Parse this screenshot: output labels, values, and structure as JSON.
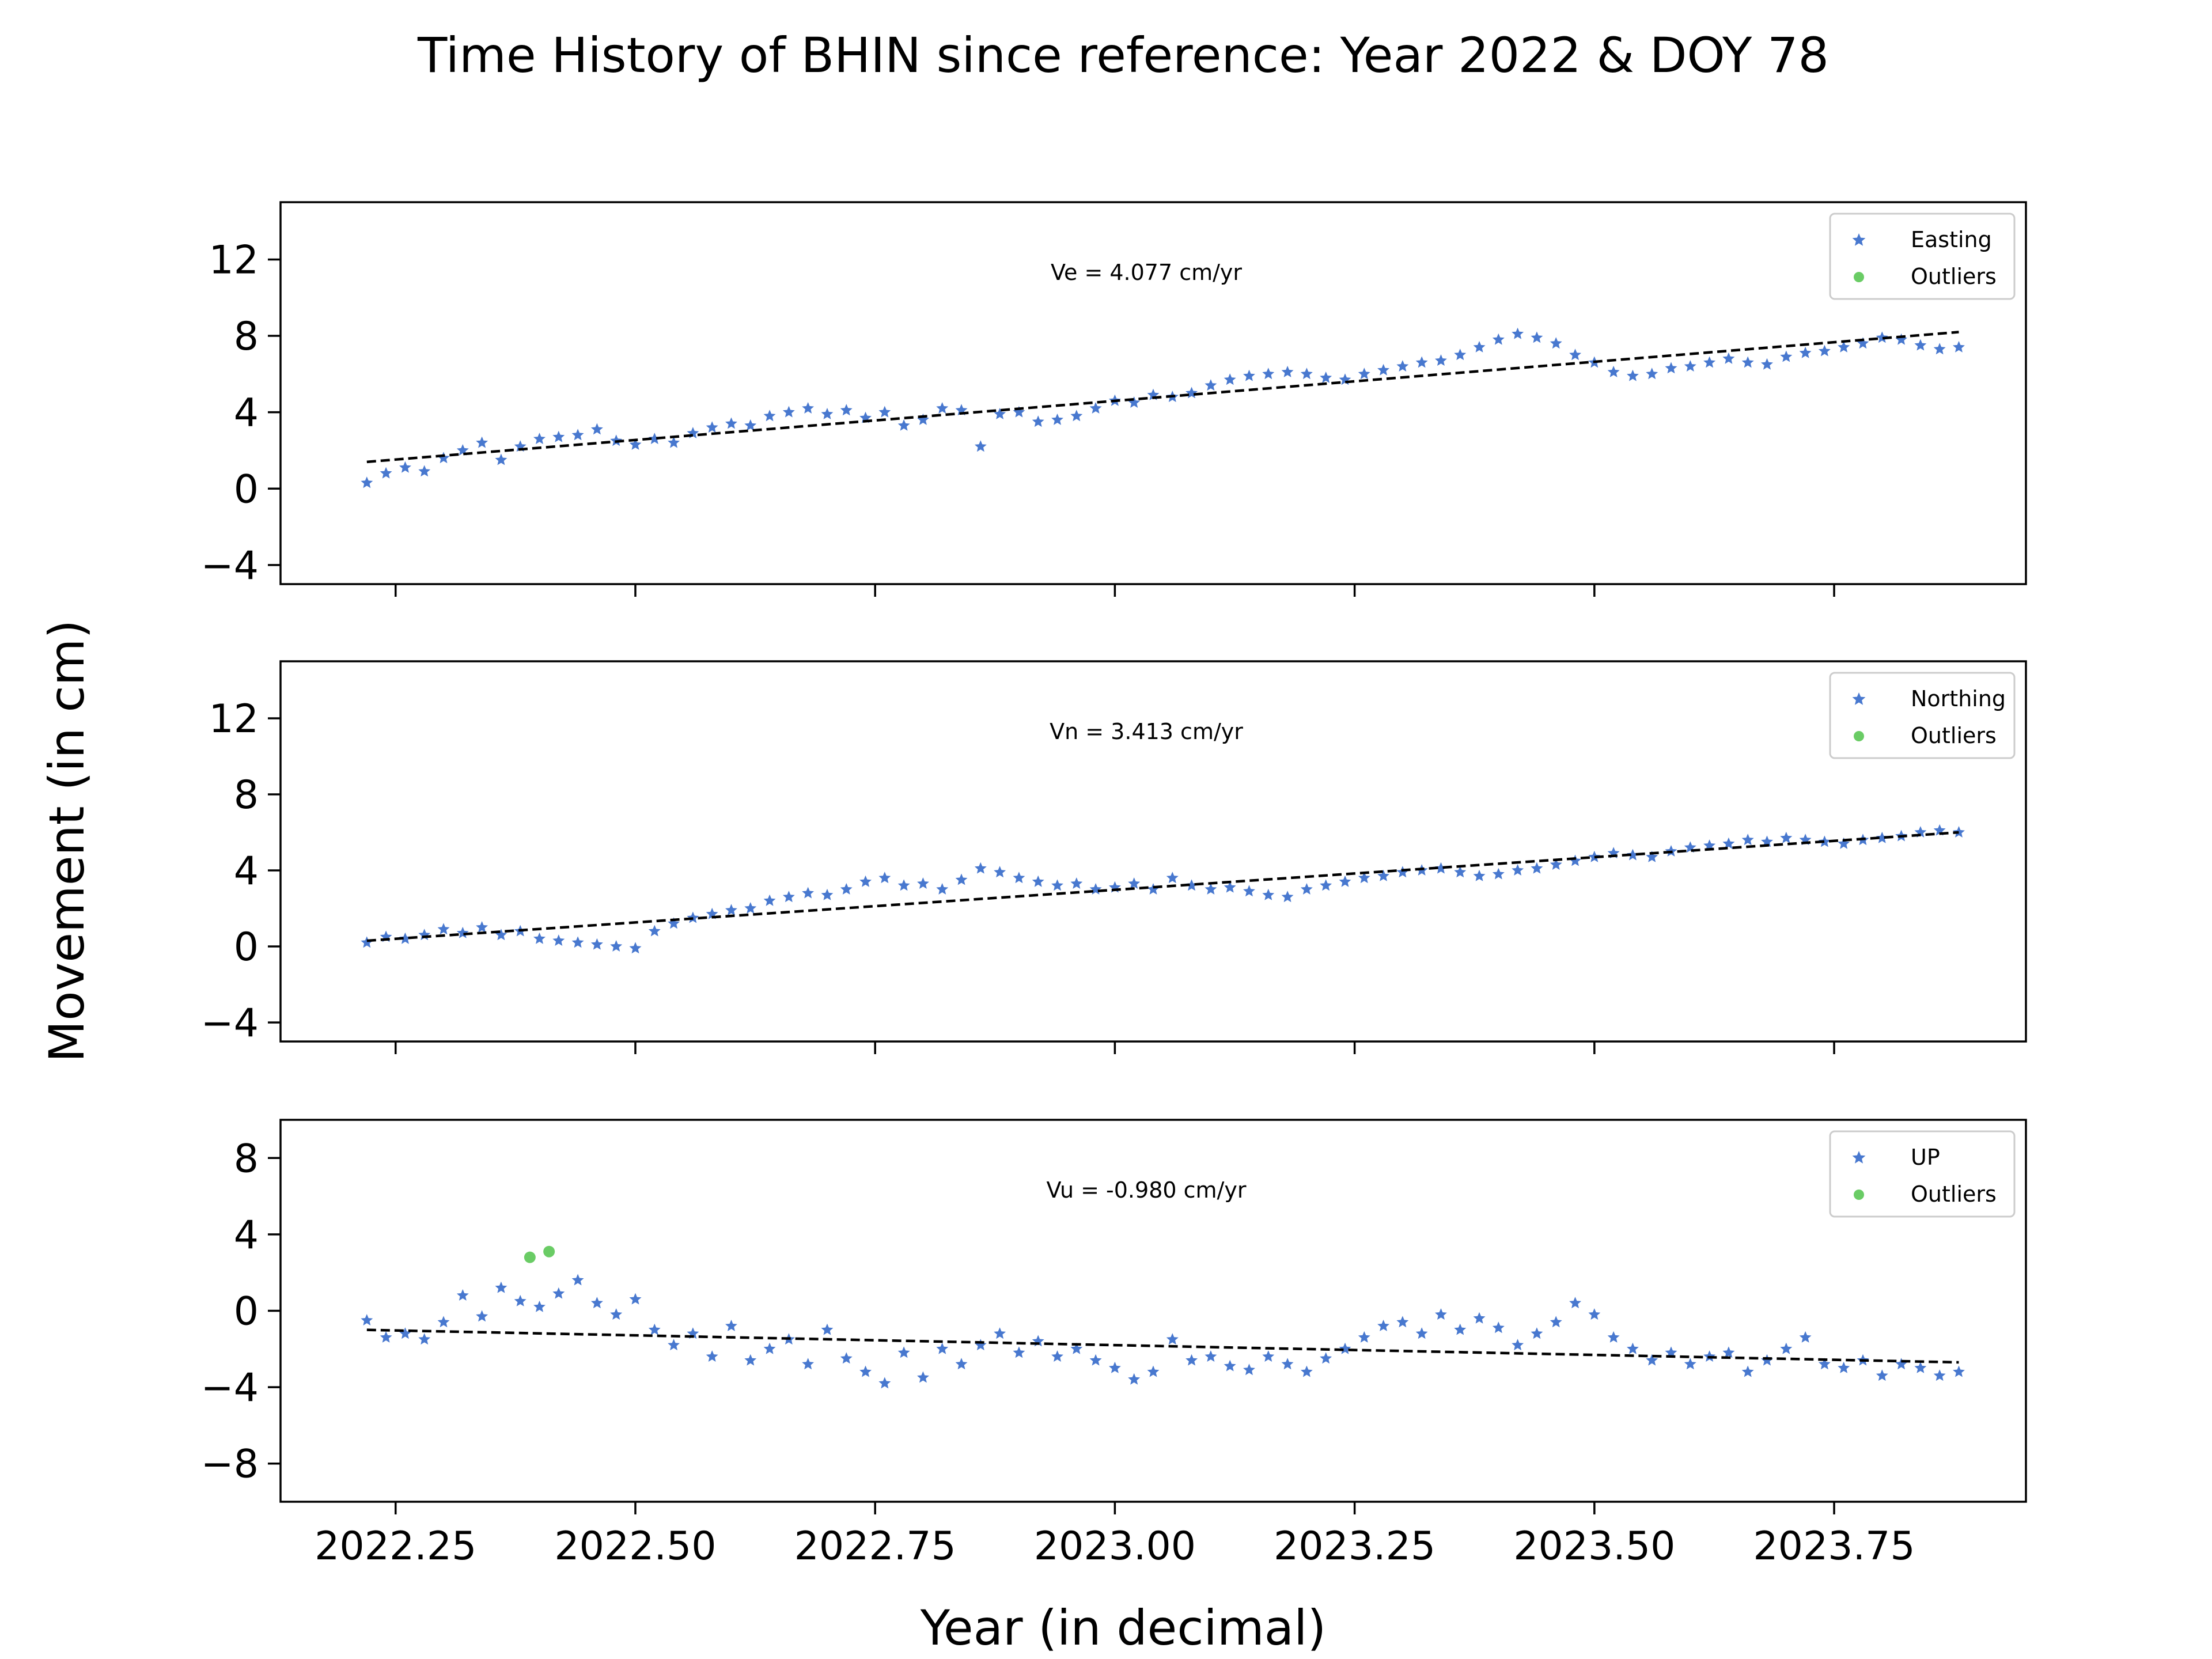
{
  "figure": {
    "title": "Time History of BHIN since reference: Year 2022 & DOY 78",
    "xlabel": "Year (in decimal)",
    "ylabel": "Movement (in cm)",
    "x_tick_labels": [
      "2022.25",
      "2022.50",
      "2022.75",
      "2023.00",
      "2023.25",
      "2023.50",
      "2023.75"
    ],
    "colors": {
      "series": "#4878cf",
      "outliers": "#6acc65",
      "trend": "#000000"
    }
  },
  "chart_data": [
    {
      "type": "scatter",
      "panel": "easting",
      "ylim": [
        -5,
        15
      ],
      "xlim": [
        2022.13,
        2023.95
      ],
      "yticks": [
        -4,
        0,
        4,
        8,
        12
      ],
      "xticks": [
        2022.25,
        2022.5,
        2022.75,
        2023.0,
        2023.25,
        2023.5,
        2023.75
      ],
      "annotation": "Ve =  4.077 cm/yr",
      "legend": {
        "position": "top-right",
        "entries": [
          "Easting",
          "Outliers"
        ]
      },
      "trend": {
        "x": [
          2022.22,
          2023.88
        ],
        "y": [
          1.4,
          8.2
        ]
      },
      "series": [
        {
          "name": "Easting",
          "marker": "star",
          "x": [
            2022.22,
            2022.24,
            2022.26,
            2022.28,
            2022.3,
            2022.32,
            2022.34,
            2022.36,
            2022.38,
            2022.4,
            2022.42,
            2022.44,
            2022.46,
            2022.48,
            2022.5,
            2022.52,
            2022.54,
            2022.56,
            2022.58,
            2022.6,
            2022.62,
            2022.64,
            2022.66,
            2022.68,
            2022.7,
            2022.72,
            2022.74,
            2022.76,
            2022.78,
            2022.8,
            2022.82,
            2022.84,
            2022.86,
            2022.88,
            2022.9,
            2022.92,
            2022.94,
            2022.96,
            2022.98,
            2023.0,
            2023.02,
            2023.04,
            2023.06,
            2023.08,
            2023.1,
            2023.12,
            2023.14,
            2023.16,
            2023.18,
            2023.2,
            2023.22,
            2023.24,
            2023.26,
            2023.28,
            2023.3,
            2023.32,
            2023.34,
            2023.36,
            2023.38,
            2023.4,
            2023.42,
            2023.44,
            2023.46,
            2023.48,
            2023.5,
            2023.52,
            2023.54,
            2023.56,
            2023.58,
            2023.6,
            2023.62,
            2023.64,
            2023.66,
            2023.68,
            2023.7,
            2023.72,
            2023.74,
            2023.76,
            2023.78,
            2023.8,
            2023.82,
            2023.84,
            2023.86,
            2023.88
          ],
          "y": [
            0.3,
            0.8,
            1.1,
            0.9,
            1.6,
            2.0,
            2.4,
            1.5,
            2.2,
            2.6,
            2.7,
            2.8,
            3.1,
            2.5,
            2.3,
            2.6,
            2.4,
            2.9,
            3.2,
            3.4,
            3.3,
            3.8,
            4.0,
            4.2,
            3.9,
            4.1,
            3.7,
            4.0,
            3.3,
            3.6,
            4.2,
            4.1,
            2.2,
            3.9,
            4.0,
            3.5,
            3.6,
            3.8,
            4.2,
            4.6,
            4.5,
            4.9,
            4.8,
            5.0,
            5.4,
            5.7,
            5.9,
            6.0,
            6.1,
            6.0,
            5.8,
            5.7,
            6.0,
            6.2,
            6.4,
            6.6,
            6.7,
            7.0,
            7.4,
            7.8,
            8.1,
            7.9,
            7.6,
            7.0,
            6.6,
            6.1,
            5.9,
            6.0,
            6.3,
            6.4,
            6.6,
            6.8,
            6.6,
            6.5,
            6.9,
            7.1,
            7.2,
            7.4,
            7.6,
            7.9,
            7.8,
            7.5,
            7.3,
            7.4
          ]
        },
        {
          "name": "Outliers",
          "marker": "dot",
          "x": [],
          "y": []
        }
      ]
    },
    {
      "type": "scatter",
      "panel": "northing",
      "ylim": [
        -5,
        15
      ],
      "xlim": [
        2022.13,
        2023.95
      ],
      "yticks": [
        -4,
        0,
        4,
        8,
        12
      ],
      "xticks": [
        2022.25,
        2022.5,
        2022.75,
        2023.0,
        2023.25,
        2023.5,
        2023.75
      ],
      "annotation": "Vn =  3.413 cm/yr",
      "legend": {
        "position": "top-right",
        "entries": [
          "Northing",
          "Outliers"
        ]
      },
      "trend": {
        "x": [
          2022.22,
          2023.88
        ],
        "y": [
          0.3,
          6.0
        ]
      },
      "series": [
        {
          "name": "Northing",
          "marker": "star",
          "x": [
            2022.22,
            2022.24,
            2022.26,
            2022.28,
            2022.3,
            2022.32,
            2022.34,
            2022.36,
            2022.38,
            2022.4,
            2022.42,
            2022.44,
            2022.46,
            2022.48,
            2022.5,
            2022.52,
            2022.54,
            2022.56,
            2022.58,
            2022.6,
            2022.62,
            2022.64,
            2022.66,
            2022.68,
            2022.7,
            2022.72,
            2022.74,
            2022.76,
            2022.78,
            2022.8,
            2022.82,
            2022.84,
            2022.86,
            2022.88,
            2022.9,
            2022.92,
            2022.94,
            2022.96,
            2022.98,
            2023.0,
            2023.02,
            2023.04,
            2023.06,
            2023.08,
            2023.1,
            2023.12,
            2023.14,
            2023.16,
            2023.18,
            2023.2,
            2023.22,
            2023.24,
            2023.26,
            2023.28,
            2023.3,
            2023.32,
            2023.34,
            2023.36,
            2023.38,
            2023.4,
            2023.42,
            2023.44,
            2023.46,
            2023.48,
            2023.5,
            2023.52,
            2023.54,
            2023.56,
            2023.58,
            2023.6,
            2023.62,
            2023.64,
            2023.66,
            2023.68,
            2023.7,
            2023.72,
            2023.74,
            2023.76,
            2023.78,
            2023.8,
            2023.82,
            2023.84,
            2023.86,
            2023.88
          ],
          "y": [
            0.2,
            0.5,
            0.4,
            0.6,
            0.9,
            0.7,
            1.0,
            0.6,
            0.8,
            0.4,
            0.3,
            0.2,
            0.1,
            0.0,
            -0.1,
            0.8,
            1.2,
            1.5,
            1.7,
            1.9,
            2.0,
            2.4,
            2.6,
            2.8,
            2.7,
            3.0,
            3.4,
            3.6,
            3.2,
            3.3,
            3.0,
            3.5,
            4.1,
            3.9,
            3.6,
            3.4,
            3.2,
            3.3,
            3.0,
            3.1,
            3.3,
            3.0,
            3.6,
            3.2,
            3.0,
            3.1,
            2.9,
            2.7,
            2.6,
            3.0,
            3.2,
            3.4,
            3.6,
            3.7,
            3.9,
            4.0,
            4.1,
            3.9,
            3.7,
            3.8,
            4.0,
            4.1,
            4.3,
            4.5,
            4.7,
            4.9,
            4.8,
            4.7,
            5.0,
            5.2,
            5.3,
            5.4,
            5.6,
            5.5,
            5.7,
            5.6,
            5.5,
            5.4,
            5.6,
            5.7,
            5.8,
            6.0,
            6.1,
            6.0
          ]
        },
        {
          "name": "Outliers",
          "marker": "dot",
          "x": [],
          "y": []
        }
      ]
    },
    {
      "type": "scatter",
      "panel": "up",
      "ylim": [
        -10,
        10
      ],
      "xlim": [
        2022.13,
        2023.95
      ],
      "yticks": [
        -8,
        -4,
        0,
        4,
        8
      ],
      "xticks": [
        2022.25,
        2022.5,
        2022.75,
        2023.0,
        2023.25,
        2023.5,
        2023.75
      ],
      "annotation": "Vu = -0.980 cm/yr",
      "legend": {
        "position": "top-right",
        "entries": [
          "UP",
          "Outliers"
        ]
      },
      "trend": {
        "x": [
          2022.22,
          2023.88
        ],
        "y": [
          -1.0,
          -2.7
        ]
      },
      "series": [
        {
          "name": "UP",
          "marker": "star",
          "x": [
            2022.22,
            2022.24,
            2022.26,
            2022.28,
            2022.3,
            2022.32,
            2022.34,
            2022.36,
            2022.38,
            2022.4,
            2022.42,
            2022.44,
            2022.46,
            2022.48,
            2022.5,
            2022.52,
            2022.54,
            2022.56,
            2022.58,
            2022.6,
            2022.62,
            2022.64,
            2022.66,
            2022.68,
            2022.7,
            2022.72,
            2022.74,
            2022.76,
            2022.78,
            2022.8,
            2022.82,
            2022.84,
            2022.86,
            2022.88,
            2022.9,
            2022.92,
            2022.94,
            2022.96,
            2022.98,
            2023.0,
            2023.02,
            2023.04,
            2023.06,
            2023.08,
            2023.1,
            2023.12,
            2023.14,
            2023.16,
            2023.18,
            2023.2,
            2023.22,
            2023.24,
            2023.26,
            2023.28,
            2023.3,
            2023.32,
            2023.34,
            2023.36,
            2023.38,
            2023.4,
            2023.42,
            2023.44,
            2023.46,
            2023.48,
            2023.5,
            2023.52,
            2023.54,
            2023.56,
            2023.58,
            2023.6,
            2023.62,
            2023.64,
            2023.66,
            2023.68,
            2023.7,
            2023.72,
            2023.74,
            2023.76,
            2023.78,
            2023.8,
            2023.82,
            2023.84,
            2023.86,
            2023.88
          ],
          "y": [
            -0.5,
            -1.4,
            -1.2,
            -1.5,
            -0.6,
            0.8,
            -0.3,
            1.2,
            0.5,
            0.2,
            0.9,
            1.6,
            0.4,
            -0.2,
            0.6,
            -1.0,
            -1.8,
            -1.2,
            -2.4,
            -0.8,
            -2.6,
            -2.0,
            -1.5,
            -2.8,
            -1.0,
            -2.5,
            -3.2,
            -3.8,
            -2.2,
            -3.5,
            -2.0,
            -2.8,
            -1.8,
            -1.2,
            -2.2,
            -1.6,
            -2.4,
            -2.0,
            -2.6,
            -3.0,
            -3.6,
            -3.2,
            -1.5,
            -2.6,
            -2.4,
            -2.9,
            -3.1,
            -2.4,
            -2.8,
            -3.2,
            -2.5,
            -2.0,
            -1.4,
            -0.8,
            -0.6,
            -1.2,
            -0.2,
            -1.0,
            -0.4,
            -0.9,
            -1.8,
            -1.2,
            -0.6,
            0.4,
            -0.2,
            -1.4,
            -2.0,
            -2.6,
            -2.2,
            -2.8,
            -2.4,
            -2.2,
            -3.2,
            -2.6,
            -2.0,
            -1.4,
            -2.8,
            -3.0,
            -2.6,
            -3.4,
            -2.8,
            -3.0,
            -3.4,
            -3.2
          ]
        },
        {
          "name": "Outliers",
          "marker": "dot",
          "x": [
            2022.39,
            2022.41
          ],
          "y": [
            2.8,
            3.1
          ]
        }
      ]
    }
  ]
}
